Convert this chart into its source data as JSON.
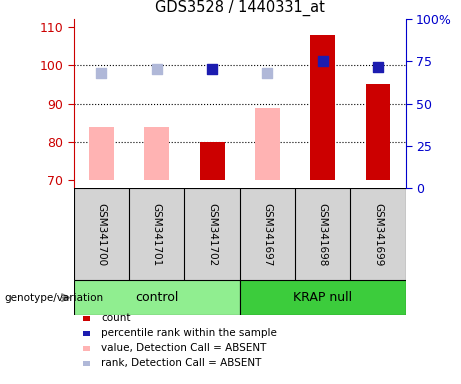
{
  "title": "GDS3528 / 1440331_at",
  "samples": [
    "GSM341700",
    "GSM341701",
    "GSM341702",
    "GSM341697",
    "GSM341698",
    "GSM341699"
  ],
  "group_labels": [
    "control",
    "KRAP null"
  ],
  "ylim_left": [
    68,
    112
  ],
  "ylim_right": [
    0,
    100
  ],
  "yticks_left": [
    70,
    80,
    90,
    100,
    110
  ],
  "yticks_right": [
    0,
    25,
    50,
    75,
    100
  ],
  "count_values": [
    70,
    70,
    80,
    70,
    108,
    95
  ],
  "count_absent": [
    true,
    true,
    false,
    true,
    false,
    false
  ],
  "value_absent_heights": [
    84,
    84,
    0,
    89,
    0,
    0
  ],
  "rank_values": [
    98,
    99,
    99,
    98,
    101,
    99.5
  ],
  "rank_absent": [
    true,
    true,
    false,
    true,
    false,
    false
  ],
  "count_color": "#cc0000",
  "count_absent_color": "#ffb3b3",
  "rank_color": "#1c1cb0",
  "rank_absent_color": "#b0b8d8",
  "bar_width": 0.45,
  "dot_size": 55,
  "background_color": "#ffffff",
  "plot_bg_color": "#ffffff",
  "control_color": "#90ee90",
  "krapnull_color": "#3ccc3c",
  "xlabel_area_color": "#d3d3d3",
  "title_color": "#000000",
  "left_axis_color": "#cc0000",
  "right_axis_color": "#0000cc",
  "hline_ticks": [
    80,
    90,
    100
  ],
  "legend_items": [
    {
      "label": "count",
      "color": "#cc0000"
    },
    {
      "label": "percentile rank within the sample",
      "color": "#1c1cb0"
    },
    {
      "label": "value, Detection Call = ABSENT",
      "color": "#ffb3b3"
    },
    {
      "label": "rank, Detection Call = ABSENT",
      "color": "#b0b8d8"
    }
  ]
}
